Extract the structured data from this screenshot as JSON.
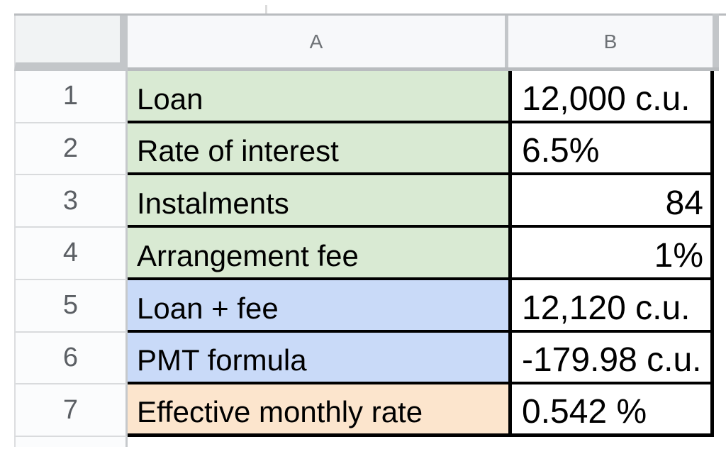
{
  "sheet": {
    "column_headers": {
      "col_a": "A",
      "col_b": "B"
    },
    "rows": [
      {
        "num": "1",
        "label": "Loan",
        "value": "12,000 c.u.",
        "label_bg": "#d9ead3",
        "value_align": "left"
      },
      {
        "num": "2",
        "label": "Rate of interest",
        "value": "6.5%",
        "label_bg": "#d9ead3",
        "value_align": "left"
      },
      {
        "num": "3",
        "label": "Instalments",
        "value": "84",
        "label_bg": "#d9ead3",
        "value_align": "right"
      },
      {
        "num": "4",
        "label": "Arrangement fee",
        "value": "1%",
        "label_bg": "#d9ead3",
        "value_align": "right"
      },
      {
        "num": "5",
        "label": "Loan + fee",
        "value": "12,120 c.u.",
        "label_bg": "#c9daf8",
        "value_align": "left"
      },
      {
        "num": "6",
        "label": "PMT formula",
        "value": "-179.98 c.u.",
        "label_bg": "#c9daf8",
        "value_align": "left"
      },
      {
        "num": "7",
        "label": "Effective monthly rate",
        "value": "0.542 %",
        "label_bg": "#fce5cd",
        "value_align": "left"
      }
    ],
    "colors": {
      "label_green": "#d9ead3",
      "label_blue": "#c9daf8",
      "label_orange": "#fce5cd",
      "value_cell_bg": "#ffffff",
      "range_border": "#000000",
      "header_bg": "#f7f8fa",
      "header_band_gray": "#c3c6c9",
      "header_text_gray": "#6e7276",
      "row_number_gray": "#5b5f64"
    }
  }
}
